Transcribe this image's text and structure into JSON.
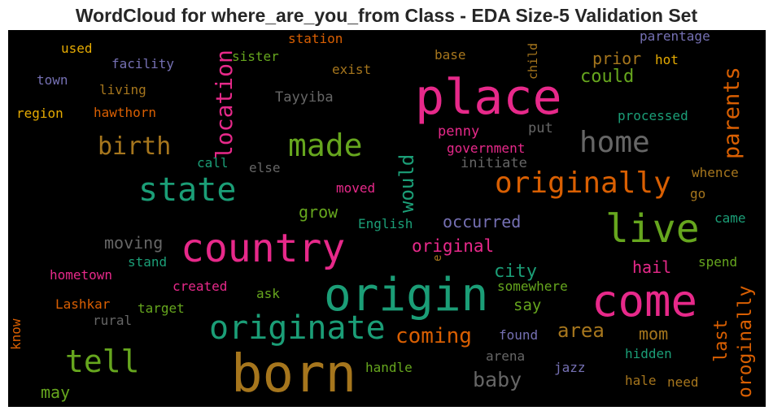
{
  "title": "WordCloud for where_are_you_from Class - EDA Size-5 Validation Set",
  "colors": {
    "background": "#000000",
    "green": "#1b9e77",
    "orange": "#d95f02",
    "purple": "#7570b3",
    "pink": "#e7298a",
    "lime": "#66a61e",
    "gold": "#e6ab02",
    "brown": "#a6761d",
    "gray": "#666666"
  },
  "words": [
    {
      "text": "place",
      "color": "pink"
    },
    {
      "text": "born",
      "color": "brown"
    },
    {
      "text": "origin",
      "color": "green"
    },
    {
      "text": "come",
      "color": "pink"
    },
    {
      "text": "country",
      "color": "pink"
    },
    {
      "text": "live",
      "color": "lime"
    },
    {
      "text": "originate",
      "color": "green"
    },
    {
      "text": "state",
      "color": "green"
    },
    {
      "text": "originally",
      "color": "orange"
    },
    {
      "text": "made",
      "color": "lime"
    },
    {
      "text": "home",
      "color": "gray"
    },
    {
      "text": "tell",
      "color": "lime"
    },
    {
      "text": "location",
      "color": "pink"
    },
    {
      "text": "birth",
      "color": "brown"
    },
    {
      "text": "parents",
      "color": "orange"
    },
    {
      "text": "would",
      "color": "green"
    },
    {
      "text": "coming",
      "color": "orange"
    },
    {
      "text": "baby",
      "color": "gray"
    },
    {
      "text": "area",
      "color": "brown"
    },
    {
      "text": "could",
      "color": "lime"
    },
    {
      "text": "prior",
      "color": "brown"
    },
    {
      "text": "oroginally",
      "color": "orange"
    },
    {
      "text": "last",
      "color": "orange"
    },
    {
      "text": "moving",
      "color": "gray"
    },
    {
      "text": "occurred",
      "color": "purple"
    },
    {
      "text": "original",
      "color": "pink"
    },
    {
      "text": "city",
      "color": "green"
    },
    {
      "text": "grow",
      "color": "lime"
    },
    {
      "text": "hail",
      "color": "pink"
    },
    {
      "text": "mom",
      "color": "brown"
    },
    {
      "text": "say",
      "color": "lime"
    },
    {
      "text": "may",
      "color": "lime"
    },
    {
      "text": "processed",
      "color": "green"
    },
    {
      "text": "Tayyiba",
      "color": "gray"
    },
    {
      "text": "penny",
      "color": "pink"
    },
    {
      "text": "put",
      "color": "gray"
    },
    {
      "text": "government",
      "color": "pink"
    },
    {
      "text": "initiate",
      "color": "gray"
    },
    {
      "text": "whence",
      "color": "brown"
    },
    {
      "text": "go",
      "color": "brown"
    },
    {
      "text": "came",
      "color": "green"
    },
    {
      "text": "spend",
      "color": "lime"
    },
    {
      "text": "hot",
      "color": "gold"
    },
    {
      "text": "parentage",
      "color": "purple"
    },
    {
      "text": "child",
      "color": "brown"
    },
    {
      "text": "base",
      "color": "brown"
    },
    {
      "text": "exist",
      "color": "brown"
    },
    {
      "text": "station",
      "color": "orange"
    },
    {
      "text": "sister",
      "color": "lime"
    },
    {
      "text": "facility",
      "color": "purple"
    },
    {
      "text": "used",
      "color": "gold"
    },
    {
      "text": "town",
      "color": "purple"
    },
    {
      "text": "living",
      "color": "brown"
    },
    {
      "text": "region",
      "color": "gold"
    },
    {
      "text": "hawthorn",
      "color": "orange"
    },
    {
      "text": "call",
      "color": "green"
    },
    {
      "text": "else",
      "color": "gray"
    },
    {
      "text": "moved",
      "color": "pink"
    },
    {
      "text": "English",
      "color": "green"
    },
    {
      "text": "stand",
      "color": "green"
    },
    {
      "text": "hometown",
      "color": "pink"
    },
    {
      "text": "created",
      "color": "pink"
    },
    {
      "text": "ask",
      "color": "lime"
    },
    {
      "text": "Lashkar",
      "color": "orange"
    },
    {
      "text": "target",
      "color": "lime"
    },
    {
      "text": "rural",
      "color": "gray"
    },
    {
      "text": "know",
      "color": "orange"
    },
    {
      "text": "somewhere",
      "color": "lime"
    },
    {
      "text": "found",
      "color": "purple"
    },
    {
      "text": "arena",
      "color": "gray"
    },
    {
      "text": "handle",
      "color": "lime"
    },
    {
      "text": "jazz",
      "color": "purple"
    },
    {
      "text": "hidden",
      "color": "green"
    },
    {
      "text": "hale",
      "color": "brown"
    },
    {
      "text": "need",
      "color": "brown"
    },
    {
      "text": "e",
      "color": "brown"
    }
  ]
}
